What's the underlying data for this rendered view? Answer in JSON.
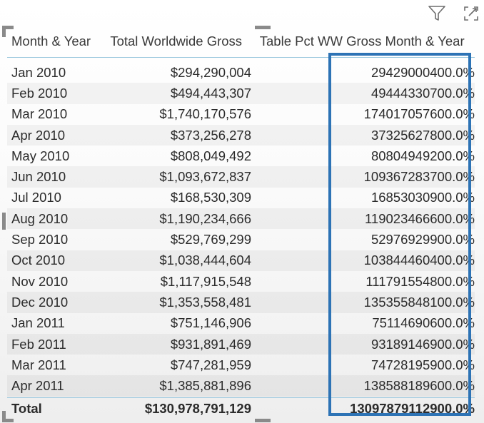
{
  "toolbar": {
    "filter_icon": "filter-icon",
    "focus_icon": "focus-mode-icon"
  },
  "table": {
    "headers": [
      "Month & Year",
      "Total Worldwide Gross",
      "Table Pct WW Gross Month & Year"
    ],
    "rows": [
      [
        "Jan 2010",
        "$294,290,004",
        "29429000400.0%"
      ],
      [
        "Feb 2010",
        "$494,443,307",
        "49444330700.0%"
      ],
      [
        "Mar 2010",
        "$1,740,170,576",
        "174017057600.0%"
      ],
      [
        "Apr 2010",
        "$373,256,278",
        "37325627800.0%"
      ],
      [
        "May 2010",
        "$808,049,492",
        "80804949200.0%"
      ],
      [
        "Jun 2010",
        "$1,093,672,837",
        "109367283700.0%"
      ],
      [
        "Jul 2010",
        "$168,530,309",
        "16853030900.0%"
      ],
      [
        "Aug 2010",
        "$1,190,234,666",
        "119023466600.0%"
      ],
      [
        "Sep 2010",
        "$529,769,299",
        "52976929900.0%"
      ],
      [
        "Oct 2010",
        "$1,038,444,604",
        "103844460400.0%"
      ],
      [
        "Nov 2010",
        "$1,117,915,548",
        "111791554800.0%"
      ],
      [
        "Dec 2010",
        "$1,353,558,481",
        "135355848100.0%"
      ],
      [
        "Jan 2011",
        "$751,146,906",
        "75114690600.0%"
      ],
      [
        "Feb 2011",
        "$931,891,469",
        "93189146900.0%"
      ],
      [
        "Mar 2011",
        "$747,281,959",
        "74728195900.0%"
      ],
      [
        "Apr 2011",
        "$1,385,881,896",
        "138588189600.0%"
      ]
    ],
    "total": [
      "Total",
      "$130,978,791,129",
      "13097879112900.0%"
    ]
  },
  "colors": {
    "highlight_border": "#2d73b5",
    "header_rule": "#9ec9df"
  }
}
